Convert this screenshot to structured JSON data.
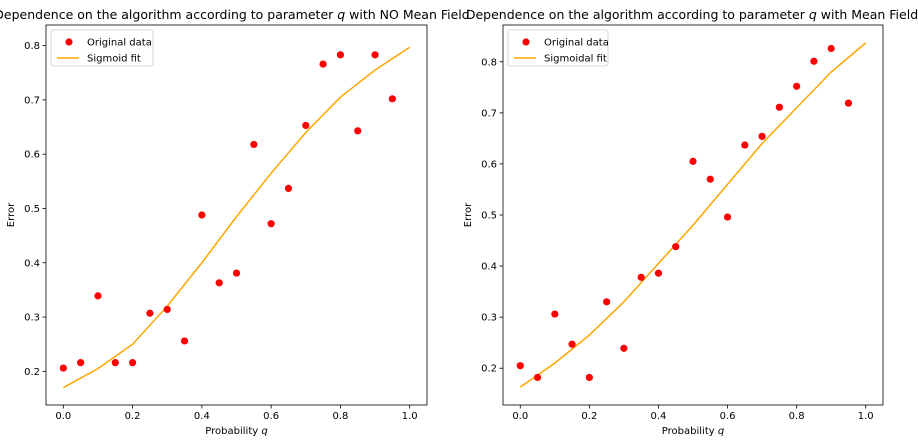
{
  "chart_data": [
    {
      "type": "scatter",
      "title": "Dependence on the algorithm according to parameter $q$ with NO Mean Field",
      "title_parts": {
        "pre": "Dependence on the algorithm according to parameter ",
        "sym": "q",
        "post": " with NO Mean Field"
      },
      "xlabel": "Probability $q$",
      "xlabel_parts": {
        "pre": "Probability ",
        "sym": "q"
      },
      "ylabel": "Error",
      "xlim": [
        -0.05,
        1.05
      ],
      "ylim": [
        0.138,
        0.838
      ],
      "xticks": [
        "0.0",
        "0.2",
        "0.4",
        "0.6",
        "0.8",
        "1.0"
      ],
      "yticks": [
        "0.2",
        "0.3",
        "0.4",
        "0.5",
        "0.6",
        "0.7",
        "0.8"
      ],
      "legend_loc": "upper left",
      "grid": false,
      "series": [
        {
          "name": "Original data",
          "kind": "points",
          "color": "#ff0000",
          "x": [
            0.0,
            0.05,
            0.1,
            0.15,
            0.2,
            0.25,
            0.3,
            0.35,
            0.4,
            0.45,
            0.5,
            0.55,
            0.6,
            0.65,
            0.7,
            0.75,
            0.8,
            0.85,
            0.9,
            0.95
          ],
          "y": [
            0.206,
            0.216,
            0.339,
            0.216,
            0.216,
            0.307,
            0.314,
            0.256,
            0.488,
            0.363,
            0.381,
            0.618,
            0.472,
            0.537,
            0.653,
            0.766,
            0.783,
            0.643,
            0.783,
            0.702
          ]
        },
        {
          "name": "Sigmoid fit",
          "kind": "line",
          "color": "#ffa500",
          "x": [
            0.0,
            0.1,
            0.2,
            0.3,
            0.4,
            0.5,
            0.6,
            0.7,
            0.8,
            0.9,
            1.0
          ],
          "y": [
            0.17,
            0.205,
            0.25,
            0.32,
            0.4,
            0.485,
            0.565,
            0.64,
            0.705,
            0.755,
            0.797
          ]
        }
      ]
    },
    {
      "type": "scatter",
      "title": "Dependence on the algorithm according to parameter $q$ with Mean Field",
      "title_parts": {
        "pre": "Dependence on the algorithm according to parameter ",
        "sym": "q",
        "post": " with Mean Field"
      },
      "xlabel": "Probability $q$",
      "xlabel_parts": {
        "pre": "Probability ",
        "sym": "q"
      },
      "ylabel": "Error",
      "xlim": [
        -0.05,
        1.05
      ],
      "ylim": [
        0.128,
        0.872
      ],
      "xticks": [
        "0.0",
        "0.2",
        "0.4",
        "0.6",
        "0.8",
        "1.0"
      ],
      "yticks": [
        "0.2",
        "0.3",
        "0.4",
        "0.5",
        "0.6",
        "0.7",
        "0.8"
      ],
      "legend_loc": "upper left",
      "grid": false,
      "series": [
        {
          "name": "Original data",
          "kind": "points",
          "color": "#ff0000",
          "x": [
            0.0,
            0.05,
            0.1,
            0.15,
            0.2,
            0.25,
            0.3,
            0.35,
            0.4,
            0.45,
            0.5,
            0.55,
            0.6,
            0.65,
            0.7,
            0.75,
            0.8,
            0.85,
            0.9,
            0.95
          ],
          "y": [
            0.205,
            0.182,
            0.306,
            0.247,
            0.182,
            0.33,
            0.239,
            0.378,
            0.386,
            0.438,
            0.605,
            0.57,
            0.496,
            0.637,
            0.654,
            0.711,
            0.752,
            0.801,
            0.826,
            0.719
          ]
        },
        {
          "name": "Sigmoidal fit",
          "kind": "line",
          "color": "#ffa500",
          "x": [
            0.0,
            0.1,
            0.2,
            0.3,
            0.4,
            0.5,
            0.6,
            0.7,
            0.8,
            0.9,
            1.0
          ],
          "y": [
            0.163,
            0.21,
            0.265,
            0.33,
            0.405,
            0.48,
            0.56,
            0.64,
            0.71,
            0.78,
            0.837
          ]
        }
      ]
    }
  ]
}
